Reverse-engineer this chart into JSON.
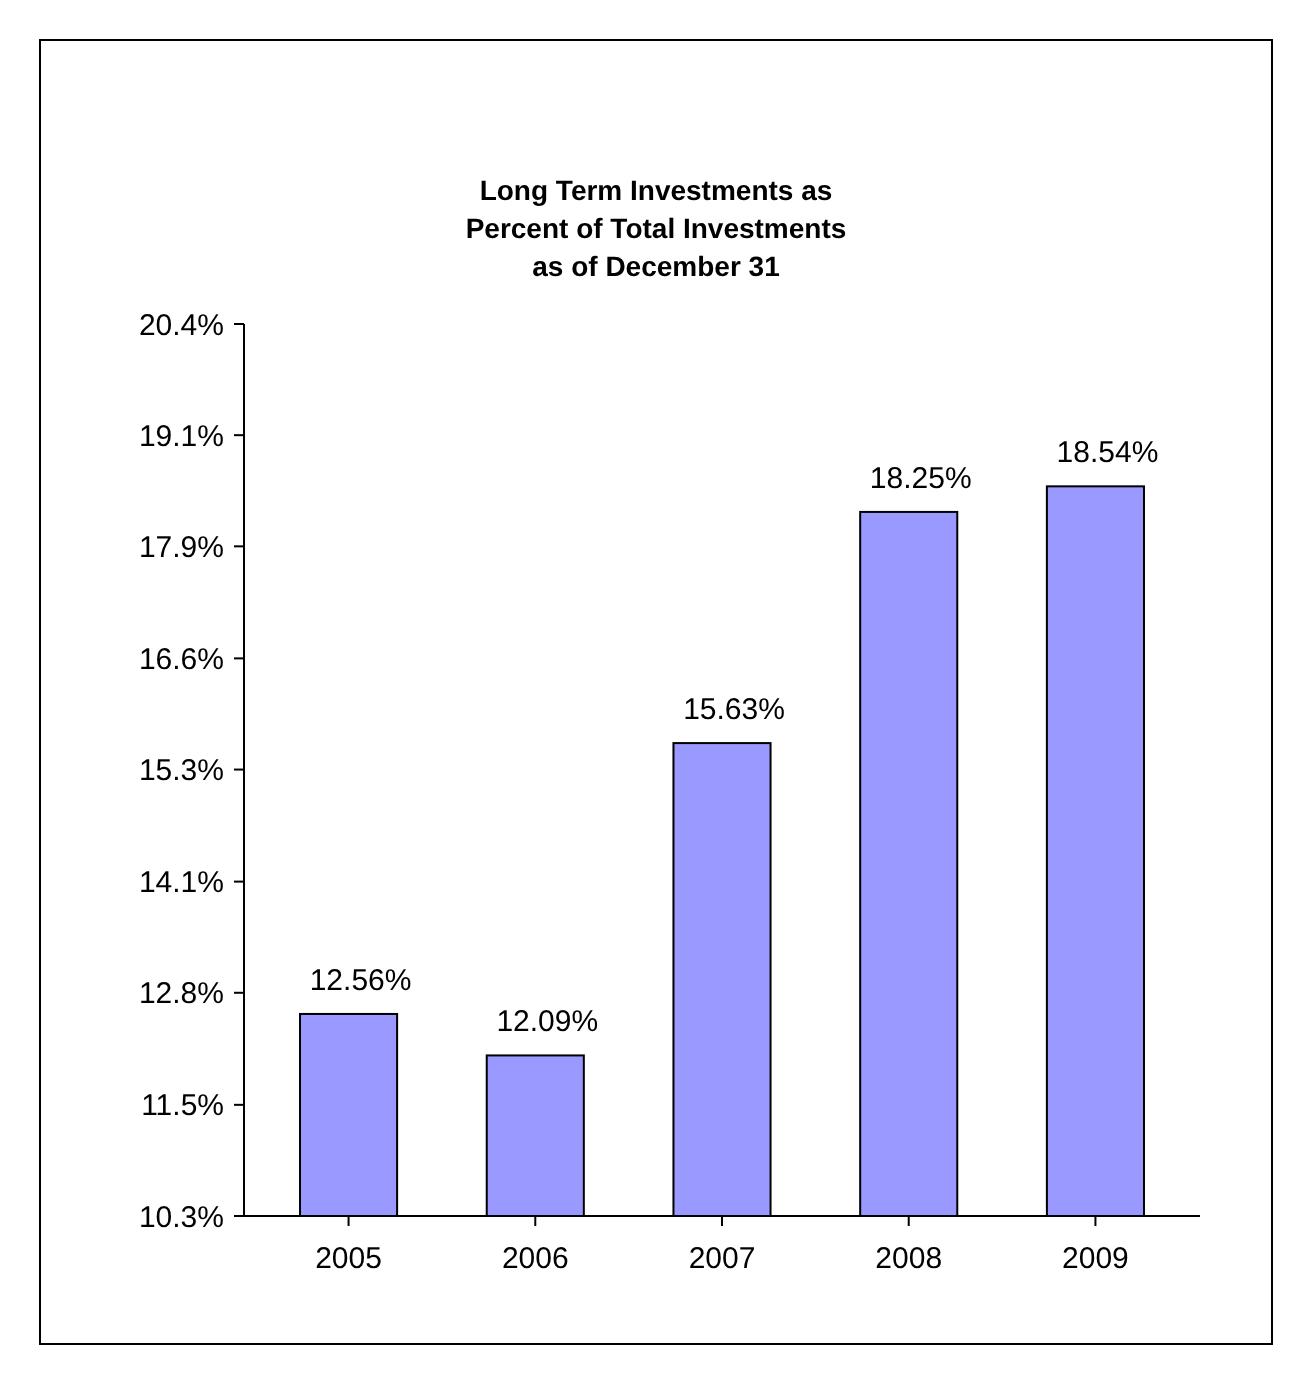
{
  "chart_data": {
    "type": "bar",
    "title": "Long Term Investments as\nPercent of Total Investments\nas of December 31",
    "categories": [
      "2005",
      "2006",
      "2007",
      "2008",
      "2009"
    ],
    "values": [
      12.56,
      12.09,
      15.63,
      18.25,
      18.54
    ],
    "color": "#9999ff",
    "value_labels": [
      "12.56%",
      "12.09%",
      "15.63%",
      "18.25%",
      "18.54%"
    ],
    "ylim": [
      10.27,
      20.38
    ],
    "yticks": [
      {
        "value": 10.27,
        "label": "10.3%"
      },
      {
        "value": 11.53,
        "label": "11.5%"
      },
      {
        "value": 12.8,
        "label": "12.8%"
      },
      {
        "value": 14.06,
        "label": "14.1%"
      },
      {
        "value": 15.33,
        "label": "15.3%"
      },
      {
        "value": 16.59,
        "label": "16.6%"
      },
      {
        "value": 17.86,
        "label": "17.9%"
      },
      {
        "value": 19.12,
        "label": "19.1%"
      },
      {
        "value": 20.38,
        "label": "20.4%"
      }
    ],
    "grid": false
  }
}
